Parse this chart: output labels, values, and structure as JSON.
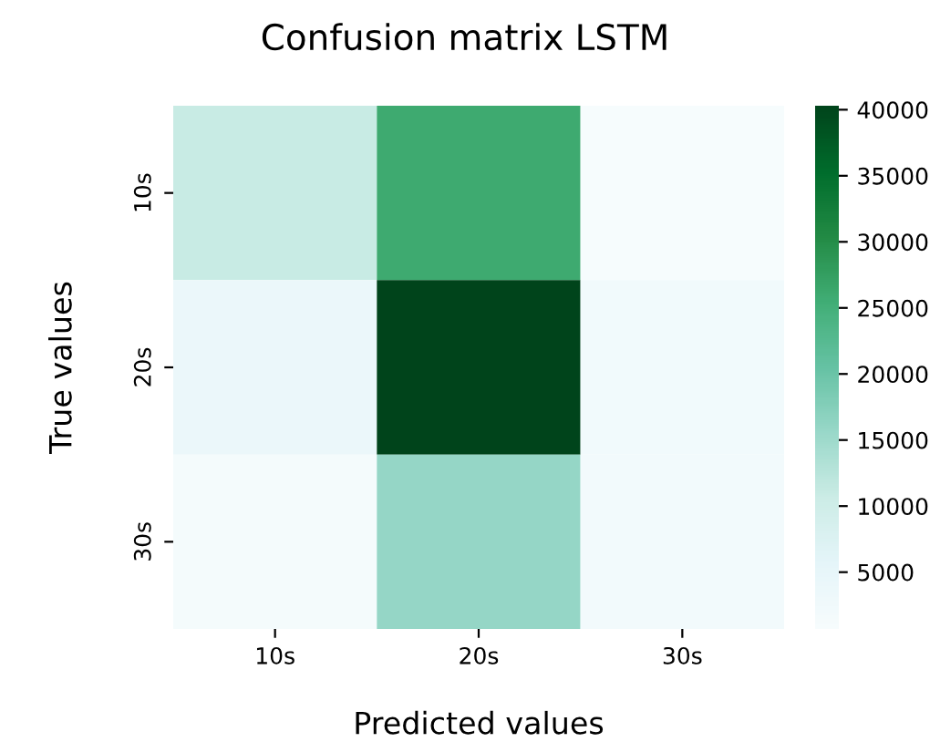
{
  "chart_data": {
    "type": "heatmap",
    "title": "Confusion matrix LSTM",
    "xlabel": "Predicted values",
    "ylabel": "True values",
    "categories": [
      "10s",
      "20s",
      "30s"
    ],
    "y_categories": [
      "10s",
      "20s",
      "30s"
    ],
    "cells": [
      [
        11000,
        26000,
        1000
      ],
      [
        4000,
        40300,
        2500
      ],
      [
        1500,
        16000,
        2000
      ]
    ],
    "clim": [
      700,
      40300
    ],
    "cticks": [
      5000,
      10000,
      15000,
      20000,
      25000,
      30000,
      35000,
      40000
    ]
  }
}
